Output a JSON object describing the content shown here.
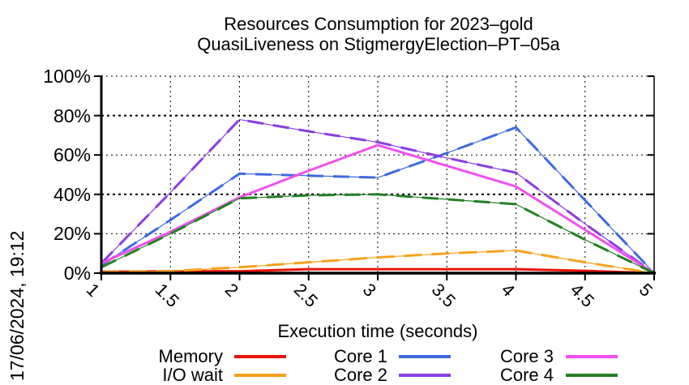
{
  "chart_data": {
    "type": "line",
    "title": "Resources Consumption for 2023–gold",
    "subtitle": "QuasiLiveness on StigmergyElection–PT–05a",
    "timestamp": "17/06/2024, 19:12",
    "xlabel": "Execution time (seconds)",
    "ylabel": "",
    "xlim": [
      1,
      5
    ],
    "ylim": [
      0,
      100
    ],
    "grid": true,
    "legend_position": "bottom",
    "x": [
      1,
      1.5,
      2,
      2.5,
      3,
      3.5,
      4,
      4.5,
      5
    ],
    "xticks": [
      "1",
      "1.5",
      "2",
      "2.5",
      "3",
      "3.5",
      "4",
      "4.5",
      "5"
    ],
    "yticks": [
      {
        "value": 0,
        "label": "0%"
      },
      {
        "value": 20,
        "label": "20%"
      },
      {
        "value": 40,
        "label": "40%"
      },
      {
        "value": 60,
        "label": "60%"
      },
      {
        "value": 80,
        "label": "80%"
      },
      {
        "value": 100,
        "label": "100%"
      }
    ],
    "series": [
      {
        "name": "Memory",
        "color": "#e81309",
        "dash": "",
        "values": [
          0.7,
          1,
          1,
          2,
          2,
          2,
          2,
          1.2,
          0
        ]
      },
      {
        "name": "I/O wait",
        "color": "#f7a11d",
        "dash": "22 12",
        "values": [
          0.5,
          1,
          3,
          5.5,
          8,
          10,
          11.5,
          5.5,
          0
        ]
      },
      {
        "name": "Core 1",
        "color": "#3e6ade",
        "dash": "20 12",
        "values": [
          4,
          27,
          50.5,
          49.5,
          48.5,
          61,
          74,
          37,
          0
        ]
      },
      {
        "name": "Core 2",
        "color": "#8b3de2",
        "dash": "20 12",
        "values": [
          5,
          41,
          78,
          72,
          66.5,
          58.5,
          51,
          25,
          0
        ]
      },
      {
        "name": "Core 3",
        "color": "#f24ff0",
        "dash": "",
        "values": [
          5,
          21,
          38.5,
          52,
          65,
          54.5,
          44,
          22,
          0
        ]
      },
      {
        "name": "Core 4",
        "color": "#238023",
        "dash": "20 12",
        "values": [
          3,
          20,
          38,
          39.5,
          40,
          37.5,
          35,
          17,
          0
        ]
      }
    ]
  }
}
